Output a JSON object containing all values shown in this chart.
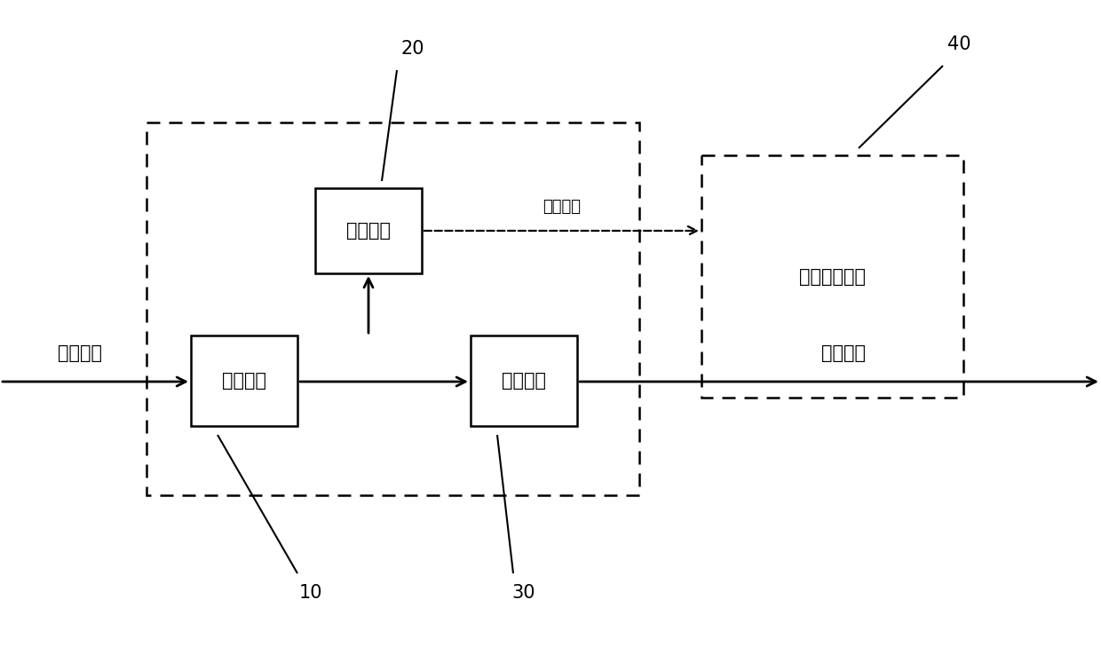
{
  "bg_color": "#ffffff",
  "line_color": "#000000",
  "exec_module_label": "执行模块",
  "write_module_label": "写入模块",
  "recover_module_label": "恢复模块",
  "storage_label": "外部存储系统",
  "label_10": "10",
  "label_20": "20",
  "label_30": "30",
  "label_40": "40",
  "left_flow_label": "程序执行",
  "right_flow_label": "程序执行",
  "write_arrow_label": "执行写入",
  "figsize": [
    12.4,
    7.38
  ],
  "dpi": 100
}
